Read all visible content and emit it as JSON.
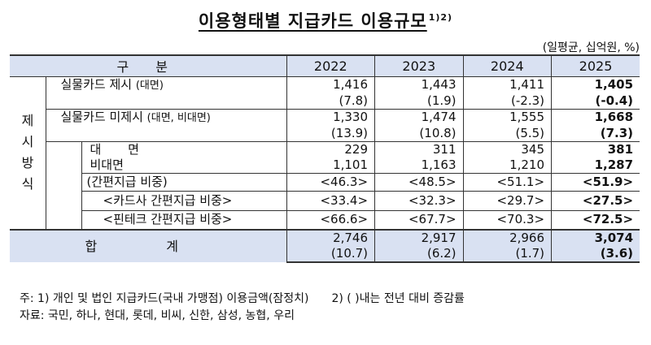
{
  "title": "이용형태별 지급카드 이용규모",
  "title_note": "1)2)",
  "unit": "(일평균, 십억원, %)",
  "header": {
    "category": "구 분",
    "years": [
      "2022",
      "2023",
      "2024",
      "2025"
    ]
  },
  "section_label": "제시 방식",
  "rows": {
    "physical": {
      "label": "실물카드 제시",
      "label_note": "(대면)",
      "values": [
        "1,416",
        "1,443",
        "1,411",
        "1,405"
      ],
      "changes": [
        "(7.8)",
        "(1.9)",
        "(-2.3)",
        "(-0.4)"
      ]
    },
    "nonphysical": {
      "label": "실물카드 미제시",
      "label_note": "(대면, 비대면)",
      "values": [
        "1,330",
        "1,474",
        "1,555",
        "1,668"
      ],
      "changes": [
        "(13.9)",
        "(10.8)",
        "(5.5)",
        "(7.3)"
      ]
    },
    "face": {
      "label": "대 면",
      "values": [
        "229",
        "311",
        "345",
        "381"
      ]
    },
    "nonface": {
      "label": "비대면",
      "values": [
        "1,101",
        "1,163",
        "1,210",
        "1,287"
      ]
    },
    "simple_share": {
      "label": "(간편지급 비중)",
      "values": [
        "<46.3>",
        "<48.5>",
        "<51.1>",
        "<51.9>"
      ]
    },
    "card_share": {
      "label": "<카드사 간편지급 비중>",
      "values": [
        "<33.4>",
        "<32.3>",
        "<29.7>",
        "<27.5>"
      ]
    },
    "fintech_share": {
      "label": "<핀테크 간편지급 비중>",
      "values": [
        "<66.6>",
        "<67.7>",
        "<70.3>",
        "<72.5>"
      ]
    },
    "total": {
      "label": "합 계",
      "values": [
        "2,746",
        "2,917",
        "2,966",
        "3,074"
      ],
      "changes": [
        "(10.7)",
        "(6.2)",
        "(1.7)",
        "(3.6)"
      ]
    }
  },
  "notes": {
    "note1": "주: 1) 개인 및 법인 지급카드(국내 가맹점) 이용금액(잠정치)",
    "note2": "2) ( )내는 전년 대비 증감률",
    "source": "자료: 국민, 하나, 현대, 롯데, 비씨, 신한, 삼성, 농협, 우리"
  }
}
